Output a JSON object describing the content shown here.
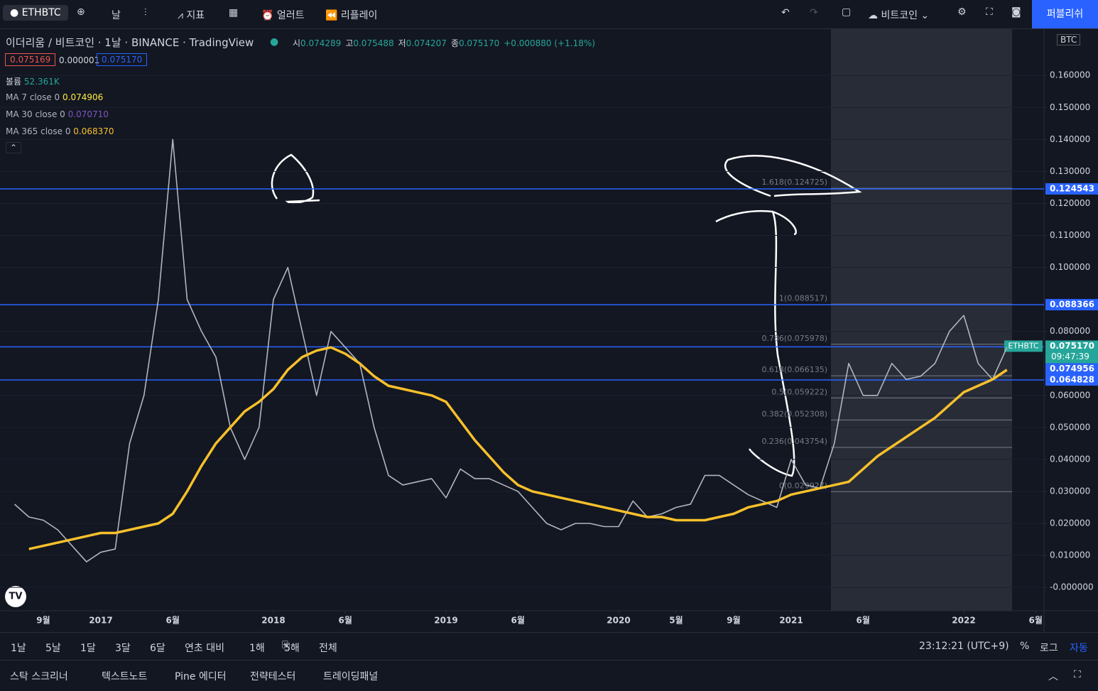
{
  "toolbar": {
    "symbol": "ETHBTC",
    "interval": "날",
    "indicators": "지표",
    "alert": "얼러트",
    "replay": "리플레이",
    "compare": "비트코인",
    "publish": "퍼블리쉬"
  },
  "legend": {
    "title": "이더리움 / 비트코인 · 1날 · BINANCE · TradingView",
    "ohlc": [
      {
        "label": "시",
        "value": "0.074289"
      },
      {
        "label": "고",
        "value": "0.075488"
      },
      {
        "label": "저",
        "value": "0.074207"
      },
      {
        "label": "종",
        "value": "0.075170"
      }
    ],
    "change": "+0.000880 (+1.18%)",
    "bid": "0.075169",
    "spread": "0.000001",
    "ask": "0.075170",
    "volume_label": "볼륨",
    "volume": "52.361K",
    "mas": [
      {
        "name": "MA 7 close 0",
        "value": "0.074906"
      },
      {
        "name": "MA 30 close 0",
        "value": "0.070710"
      },
      {
        "name": "MA 365 close 0",
        "value": "0.068370"
      }
    ]
  },
  "chart_data": {
    "type": "line",
    "currency": "BTC",
    "x": [
      "2016-07",
      "2016-08",
      "2016-09",
      "2016-10",
      "2016-11",
      "2016-12",
      "2017-01",
      "2017-02",
      "2017-03",
      "2017-04",
      "2017-05",
      "2017-06",
      "2017-07",
      "2017-08",
      "2017-09",
      "2017-10",
      "2017-11",
      "2017-12",
      "2018-01",
      "2018-02",
      "2018-03",
      "2018-04",
      "2018-05",
      "2018-06",
      "2018-07",
      "2018-08",
      "2018-09",
      "2018-10",
      "2018-11",
      "2018-12",
      "2019-01",
      "2019-02",
      "2019-03",
      "2019-04",
      "2019-05",
      "2019-06",
      "2019-07",
      "2019-08",
      "2019-09",
      "2019-10",
      "2019-11",
      "2019-12",
      "2020-01",
      "2020-02",
      "2020-03",
      "2020-04",
      "2020-05",
      "2020-06",
      "2020-07",
      "2020-08",
      "2020-09",
      "2020-10",
      "2020-11",
      "2020-12",
      "2021-01",
      "2021-02",
      "2021-03",
      "2021-04",
      "2021-05",
      "2021-06",
      "2021-07",
      "2021-08",
      "2021-09",
      "2021-10",
      "2021-11",
      "2021-12",
      "2022-01",
      "2022-02",
      "2022-03",
      "2022-04"
    ],
    "series": [
      {
        "name": "ETHBTC",
        "color": "#b2b5be",
        "values": [
          0.026,
          0.022,
          0.021,
          0.018,
          0.013,
          0.008,
          0.011,
          0.012,
          0.045,
          0.06,
          0.09,
          0.14,
          0.09,
          0.08,
          0.072,
          0.05,
          0.04,
          0.05,
          0.09,
          0.1,
          0.08,
          0.06,
          0.08,
          0.075,
          0.07,
          0.05,
          0.035,
          0.032,
          0.033,
          0.034,
          0.028,
          0.037,
          0.034,
          0.034,
          0.032,
          0.03,
          0.025,
          0.02,
          0.018,
          0.02,
          0.02,
          0.019,
          0.019,
          0.027,
          0.022,
          0.023,
          0.025,
          0.026,
          0.035,
          0.035,
          0.032,
          0.029,
          0.027,
          0.025,
          0.04,
          0.032,
          0.031,
          0.045,
          0.07,
          0.06,
          0.06,
          0.07,
          0.065,
          0.066,
          0.07,
          0.08,
          0.085,
          0.07,
          0.065,
          0.075
        ]
      },
      {
        "name": "MA 365 close 0",
        "color": "#f7c02b",
        "values": [
          null,
          0.012,
          0.013,
          0.014,
          0.015,
          0.016,
          0.017,
          0.017,
          0.018,
          0.019,
          0.02,
          0.023,
          0.03,
          0.038,
          0.045,
          0.05,
          0.055,
          0.058,
          0.062,
          0.068,
          0.072,
          0.074,
          0.075,
          0.073,
          0.07,
          0.066,
          0.063,
          0.062,
          0.061,
          0.06,
          0.058,
          0.052,
          0.046,
          0.041,
          0.036,
          0.032,
          0.03,
          0.029,
          0.028,
          0.027,
          0.026,
          0.025,
          0.024,
          0.023,
          0.022,
          0.022,
          0.021,
          0.021,
          0.021,
          0.022,
          0.023,
          0.025,
          0.026,
          0.027,
          0.029,
          0.03,
          0.031,
          0.032,
          0.033,
          0.037,
          0.041,
          0.044,
          0.047,
          0.05,
          0.053,
          0.057,
          0.061,
          0.063,
          0.065,
          0.068
        ]
      }
    ],
    "ylim": [
      -0.0073,
      0.1747
    ],
    "yticks": [
      {
        "value": 0.16,
        "label": "0.160000"
      },
      {
        "value": 0.15,
        "label": "0.150000"
      },
      {
        "value": 0.14,
        "label": "0.140000"
      },
      {
        "value": 0.13,
        "label": "0.130000"
      },
      {
        "value": 0.12,
        "label": "0.120000"
      },
      {
        "value": 0.11,
        "label": "0.110000"
      },
      {
        "value": 0.1,
        "label": "0.100000"
      },
      {
        "value": 0.08,
        "label": "0.080000"
      },
      {
        "value": 0.06,
        "label": "0.060000"
      },
      {
        "value": 0.05,
        "label": "0.050000"
      },
      {
        "value": 0.04,
        "label": "0.040000"
      },
      {
        "value": 0.03,
        "label": "0.030000"
      },
      {
        "value": 0.02,
        "label": "0.020000"
      },
      {
        "value": 0.01,
        "label": "0.010000"
      },
      {
        "value": 0,
        "label": "-0.000000"
      }
    ],
    "xticks": [
      {
        "value": "2016-09",
        "label": "9월"
      },
      {
        "value": "2017-01",
        "label": "2017"
      },
      {
        "value": "2017-06",
        "label": "6월"
      },
      {
        "value": "2018-01",
        "label": "2018"
      },
      {
        "value": "2018-06",
        "label": "6월"
      },
      {
        "value": "2019-01",
        "label": "2019"
      },
      {
        "value": "2019-06",
        "label": "6월"
      },
      {
        "value": "2020-01",
        "label": "2020"
      },
      {
        "value": "2020-05",
        "label": "5월"
      },
      {
        "value": "2020-09",
        "label": "9월"
      },
      {
        "value": "2021-01",
        "label": "2021"
      },
      {
        "value": "2021-06",
        "label": "6월"
      },
      {
        "value": "2022-01",
        "label": "2022"
      },
      {
        "value": "2022-06",
        "label": "6월"
      }
    ],
    "grid": true,
    "hlines": [
      {
        "value": 0.124543,
        "label": "0.124543"
      },
      {
        "value": 0.088366,
        "label": "0.088366"
      },
      {
        "value": 0.064828,
        "label": "0.064828"
      }
    ],
    "last": {
      "value": 0.07517,
      "label": "0.075170",
      "countdown": "09:47:39"
    },
    "ma_badge": {
      "value": 0.074956,
      "label": "0.074956"
    },
    "fib": [
      {
        "value": 0.124725,
        "label": "1.618(0.124725)"
      },
      {
        "value": 0.088517,
        "label": "1(0.088517)"
      },
      {
        "value": 0.075978,
        "label": "0.786(0.075978)"
      },
      {
        "value": 0.066135,
        "label": "0.618(0.066135)"
      },
      {
        "value": 0.059222,
        "label": "0.5(0.059222)"
      },
      {
        "value": 0.052308,
        "label": "0.382(0.052308)"
      },
      {
        "value": 0.043754,
        "label": "0.236(0.043754)"
      },
      {
        "value": 0.029927,
        "label": "0(0.029927)"
      }
    ]
  },
  "ranges": [
    "1날",
    "5날",
    "1달",
    "3달",
    "6달",
    "연초 대비",
    "1해",
    "5해",
    "전체"
  ],
  "status": {
    "time": "23:12:21 (UTC+9)",
    "percent": "%",
    "log": "로그",
    "auto": "자동"
  },
  "tabs": [
    "스탁 스크리너",
    "텍스트노트",
    "Pine 에디터",
    "전략테스터",
    "트레이딩패널"
  ]
}
